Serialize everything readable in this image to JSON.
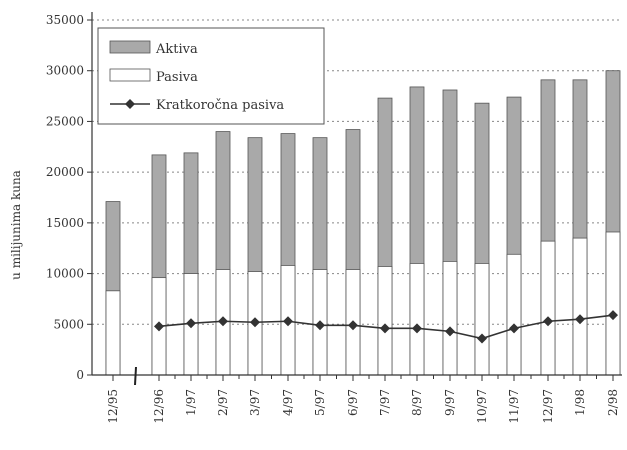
{
  "chart_data": {
    "type": "bar",
    "title": "",
    "ylabel": "u milijunima kuna",
    "xlabel": "",
    "ylim": [
      0,
      35000
    ],
    "yticks": [
      0,
      5000,
      10000,
      15000,
      20000,
      25000,
      30000,
      35000
    ],
    "ytick_labels": [
      "0",
      "5000",
      "10000",
      "15000",
      "20000",
      "25000",
      "30000",
      "35000"
    ],
    "grid": true,
    "legend_position": "top-left",
    "categories": [
      "12/95",
      "12/96",
      "1/97",
      "2/97",
      "3/97",
      "4/97",
      "5/97",
      "6/97",
      "7/97",
      "8/97",
      "9/97",
      "10/97",
      "11/97",
      "12/97",
      "1/98",
      "2/98"
    ],
    "series": [
      {
        "name": "Aktiva",
        "kind": "bar",
        "color": "#a9a9a9",
        "values": [
          17100,
          21700,
          21900,
          24000,
          23400,
          23800,
          23400,
          24200,
          27300,
          28400,
          28100,
          26800,
          27400,
          29100,
          29100,
          30000
        ]
      },
      {
        "name": "Pasiva",
        "kind": "bar",
        "color": "#ffffff",
        "values": [
          8300,
          9600,
          10000,
          10400,
          10200,
          10800,
          10400,
          10400,
          10700,
          11000,
          11200,
          11000,
          11900,
          13200,
          13500,
          14100
        ]
      },
      {
        "name": "Kratkoročna pasiva",
        "kind": "line",
        "marker": "diamond",
        "color": "#333333",
        "values": [
          null,
          4800,
          5100,
          5300,
          5200,
          5300,
          4900,
          4900,
          4600,
          4600,
          4300,
          3600,
          4600,
          5300,
          5500,
          5900
        ]
      }
    ]
  }
}
